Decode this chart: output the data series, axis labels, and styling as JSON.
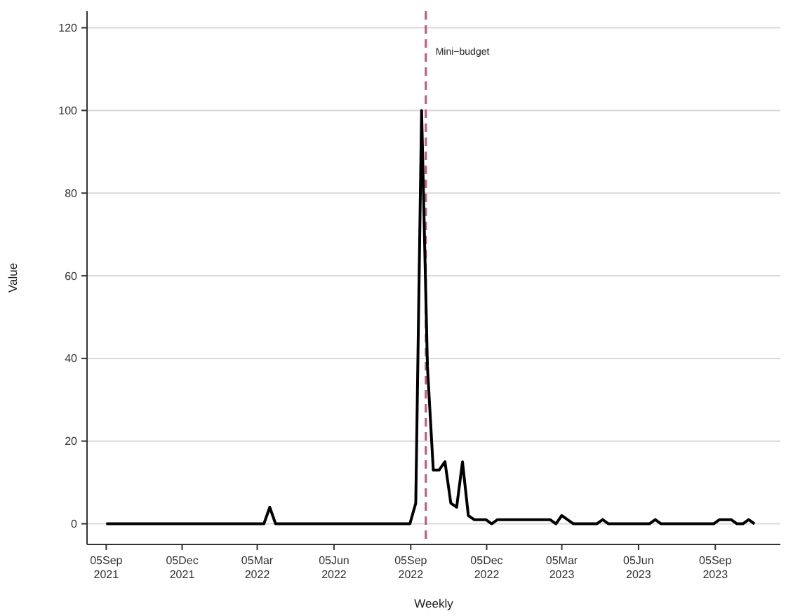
{
  "chart_data": {
    "type": "line",
    "xlabel": "Weekly",
    "ylabel": "Value",
    "x": [
      "2021-09-05",
      "2022-03-13",
      "2022-03-20",
      "2022-03-27",
      "2022-09-04",
      "2022-09-11",
      "2022-09-18",
      "2022-09-25",
      "2022-10-02",
      "2022-10-09",
      "2022-10-16",
      "2022-10-23",
      "2022-10-30",
      "2022-11-06",
      "2022-11-13",
      "2022-11-20",
      "2022-12-04",
      "2022-12-11",
      "2022-12-18",
      "2023-02-19",
      "2023-02-26",
      "2023-03-05",
      "2023-03-19",
      "2023-04-16",
      "2023-04-23",
      "2023-04-30",
      "2023-06-18",
      "2023-06-25",
      "2023-07-02",
      "2023-09-03",
      "2023-09-10",
      "2023-09-24",
      "2023-10-01",
      "2023-10-08",
      "2023-10-15",
      "2023-10-22"
    ],
    "series": [
      {
        "color": "#000000",
        "values": [
          0,
          0,
          4,
          0,
          0,
          5,
          100,
          38,
          13,
          13,
          15,
          5,
          4,
          15,
          2,
          1,
          1,
          0,
          1,
          1,
          0,
          2,
          0,
          0,
          1,
          0,
          0,
          1,
          0,
          0,
          1,
          1,
          0,
          0,
          1,
          0
        ]
      }
    ],
    "xlim": [
      "2021-08-13",
      "2023-11-22"
    ],
    "xticks": [
      {
        "value": "2021-09-05",
        "label": "05Sep\n2021"
      },
      {
        "value": "2021-12-05",
        "label": "05Dec\n2021"
      },
      {
        "value": "2022-03-05",
        "label": "05Mar\n2022"
      },
      {
        "value": "2022-06-05",
        "label": "05Jun\n2022"
      },
      {
        "value": "2022-09-05",
        "label": "05Sep\n2022"
      },
      {
        "value": "2022-12-05",
        "label": "05Dec\n2022"
      },
      {
        "value": "2023-03-05",
        "label": "05Mar\n2023"
      },
      {
        "value": "2023-06-05",
        "label": "05Jun\n2023"
      },
      {
        "value": "2023-09-05",
        "label": "05Sep\n2023"
      }
    ],
    "ylim": [
      -5,
      124
    ],
    "yticks": [
      0,
      20,
      40,
      60,
      80,
      100,
      120
    ],
    "ref_lines": [
      {
        "axis": "x",
        "value": "2022-09-23",
        "label": "Mini−budget",
        "color": "#c0587e",
        "line_style": "dashed"
      }
    ],
    "grid": "y",
    "marker": "none",
    "line_style": "solid"
  }
}
